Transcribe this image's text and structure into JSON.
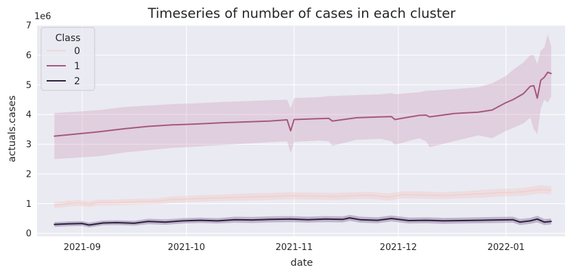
{
  "chart_data": {
    "type": "line",
    "title": "Timeseries of number of cases in each cluster",
    "xlabel": "date",
    "ylabel": "actuals.cases",
    "y_offset_label": "1e6",
    "x_range": [
      "2021-08-19",
      "2022-01-18"
    ],
    "ylim": [
      -0.1,
      7.0
    ],
    "y_unit": 1000000,
    "y_ticks": [
      {
        "value": 0,
        "label": "0"
      },
      {
        "value": 1,
        "label": "1"
      },
      {
        "value": 2,
        "label": "2"
      },
      {
        "value": 3,
        "label": "3"
      },
      {
        "value": 4,
        "label": "4"
      },
      {
        "value": 5,
        "label": "5"
      },
      {
        "value": 6,
        "label": "6"
      },
      {
        "value": 7,
        "label": "7"
      }
    ],
    "x_ticks": [
      {
        "value": "2021-09-01",
        "label": "2021-09"
      },
      {
        "value": "2021-10-01",
        "label": "2021-10"
      },
      {
        "value": "2021-11-01",
        "label": "2021-11"
      },
      {
        "value": "2021-12-01",
        "label": "2021-12"
      },
      {
        "value": "2022-01-01",
        "label": "2022-01"
      }
    ],
    "grid": true,
    "legend": {
      "title": "Class",
      "placement": "top-left"
    },
    "series": [
      {
        "name": "0",
        "color": "#f1cfcc",
        "band_color": "#f3c7c0",
        "band_opacity": 0.35,
        "line_width": 1.5,
        "x": [
          "2021-08-24",
          "2021-08-26",
          "2021-08-28",
          "2021-08-31",
          "2021-09-03",
          "2021-09-06",
          "2021-09-09",
          "2021-09-13",
          "2021-09-18",
          "2021-09-23",
          "2021-09-26",
          "2021-09-30",
          "2021-10-06",
          "2021-10-12",
          "2021-10-18",
          "2021-10-24",
          "2021-10-31",
          "2021-11-03",
          "2021-11-08",
          "2021-11-13",
          "2021-11-18",
          "2021-11-23",
          "2021-11-28",
          "2021-12-02",
          "2021-12-08",
          "2021-12-14",
          "2021-12-20",
          "2021-12-26",
          "2021-12-30",
          "2022-01-03",
          "2022-01-06",
          "2022-01-09",
          "2022-01-11",
          "2022-01-14"
        ],
        "y": [
          0.95,
          0.97,
          1.0,
          1.02,
          0.98,
          1.04,
          1.03,
          1.05,
          1.07,
          1.08,
          1.13,
          1.15,
          1.18,
          1.2,
          1.22,
          1.24,
          1.27,
          1.26,
          1.25,
          1.24,
          1.27,
          1.28,
          1.22,
          1.3,
          1.29,
          1.27,
          1.3,
          1.34,
          1.37,
          1.38,
          1.4,
          1.45,
          1.48,
          1.45
        ],
        "lower": [
          0.85,
          0.87,
          0.9,
          0.92,
          0.88,
          0.94,
          0.93,
          0.95,
          0.97,
          0.98,
          1.02,
          1.04,
          1.07,
          1.09,
          1.1,
          1.12,
          1.15,
          1.14,
          1.13,
          1.12,
          1.15,
          1.16,
          1.1,
          1.18,
          1.17,
          1.15,
          1.18,
          1.21,
          1.24,
          1.25,
          1.27,
          1.31,
          1.34,
          1.31
        ],
        "upper": [
          1.05,
          1.07,
          1.1,
          1.12,
          1.08,
          1.14,
          1.13,
          1.15,
          1.17,
          1.18,
          1.24,
          1.26,
          1.29,
          1.31,
          1.34,
          1.36,
          1.39,
          1.38,
          1.37,
          1.36,
          1.39,
          1.4,
          1.34,
          1.42,
          1.41,
          1.39,
          1.42,
          1.47,
          1.5,
          1.51,
          1.53,
          1.59,
          1.62,
          1.59
        ]
      },
      {
        "name": "1",
        "color": "#a4577f",
        "band_color": "#c788ab",
        "band_opacity": 0.28,
        "line_width": 2.0,
        "x": [
          "2021-08-24",
          "2021-08-31",
          "2021-09-06",
          "2021-09-13",
          "2021-09-20",
          "2021-09-27",
          "2021-10-04",
          "2021-10-11",
          "2021-10-18",
          "2021-10-25",
          "2021-10-30",
          "2021-10-31",
          "2021-11-01",
          "2021-11-08",
          "2021-11-11",
          "2021-11-12",
          "2021-11-19",
          "2021-11-26",
          "2021-11-29",
          "2021-11-30",
          "2021-12-07",
          "2021-12-09",
          "2021-12-10",
          "2021-12-17",
          "2021-12-24",
          "2021-12-28",
          "2022-01-01",
          "2022-01-03",
          "2022-01-06",
          "2022-01-08",
          "2022-01-09",
          "2022-01-10",
          "2022-01-11",
          "2022-01-12",
          "2022-01-13",
          "2022-01-14"
        ],
        "y": [
          3.27,
          3.35,
          3.42,
          3.52,
          3.6,
          3.65,
          3.68,
          3.72,
          3.75,
          3.78,
          3.82,
          3.45,
          3.83,
          3.86,
          3.87,
          3.78,
          3.89,
          3.92,
          3.93,
          3.83,
          3.97,
          3.98,
          3.92,
          4.03,
          4.08,
          4.15,
          4.4,
          4.5,
          4.7,
          4.95,
          4.97,
          4.55,
          5.15,
          5.25,
          5.42,
          5.38
        ],
        "lower": [
          2.5,
          2.55,
          2.6,
          2.72,
          2.8,
          2.88,
          2.92,
          2.97,
          3.02,
          3.07,
          3.1,
          2.7,
          3.08,
          3.12,
          3.1,
          2.95,
          3.15,
          3.18,
          3.1,
          2.98,
          3.2,
          3.1,
          2.9,
          3.1,
          3.3,
          3.2,
          3.45,
          3.55,
          3.7,
          3.9,
          3.5,
          3.35,
          4.2,
          4.5,
          4.4,
          4.6
        ],
        "upper": [
          4.05,
          4.1,
          4.15,
          4.25,
          4.3,
          4.35,
          4.38,
          4.42,
          4.45,
          4.48,
          4.5,
          4.2,
          4.55,
          4.58,
          4.62,
          4.62,
          4.65,
          4.68,
          4.72,
          4.68,
          4.75,
          4.8,
          4.8,
          4.85,
          4.92,
          5.05,
          5.3,
          5.5,
          5.75,
          6.0,
          6.0,
          5.7,
          6.15,
          6.25,
          6.7,
          6.3
        ]
      },
      {
        "name": "2",
        "color": "#2e1e3b",
        "band_color": "#6a4d84",
        "band_opacity": 0.35,
        "line_width": 2.0,
        "x": [
          "2021-08-24",
          "2021-08-28",
          "2021-09-01",
          "2021-09-03",
          "2021-09-07",
          "2021-09-11",
          "2021-09-16",
          "2021-09-20",
          "2021-09-25",
          "2021-09-30",
          "2021-10-05",
          "2021-10-10",
          "2021-10-15",
          "2021-10-20",
          "2021-10-25",
          "2021-10-31",
          "2021-11-05",
          "2021-11-10",
          "2021-11-15",
          "2021-11-17",
          "2021-11-20",
          "2021-11-25",
          "2021-11-29",
          "2021-12-04",
          "2021-12-09",
          "2021-12-14",
          "2021-12-19",
          "2021-12-24",
          "2021-12-29",
          "2022-01-03",
          "2022-01-05",
          "2022-01-08",
          "2022-01-10",
          "2022-01-12",
          "2022-01-14"
        ],
        "y": [
          0.3,
          0.32,
          0.33,
          0.28,
          0.35,
          0.36,
          0.34,
          0.4,
          0.38,
          0.42,
          0.44,
          0.42,
          0.46,
          0.45,
          0.47,
          0.48,
          0.46,
          0.48,
          0.47,
          0.52,
          0.46,
          0.44,
          0.5,
          0.43,
          0.44,
          0.42,
          0.43,
          0.44,
          0.45,
          0.46,
          0.38,
          0.42,
          0.48,
          0.38,
          0.4
        ],
        "lower": [
          0.22,
          0.24,
          0.25,
          0.2,
          0.27,
          0.28,
          0.26,
          0.31,
          0.29,
          0.33,
          0.35,
          0.33,
          0.36,
          0.35,
          0.37,
          0.38,
          0.36,
          0.38,
          0.37,
          0.42,
          0.36,
          0.34,
          0.4,
          0.33,
          0.34,
          0.32,
          0.33,
          0.34,
          0.35,
          0.36,
          0.28,
          0.32,
          0.37,
          0.28,
          0.3
        ],
        "upper": [
          0.38,
          0.4,
          0.41,
          0.36,
          0.43,
          0.44,
          0.42,
          0.49,
          0.47,
          0.51,
          0.53,
          0.51,
          0.56,
          0.55,
          0.57,
          0.58,
          0.56,
          0.58,
          0.57,
          0.62,
          0.56,
          0.54,
          0.6,
          0.53,
          0.54,
          0.52,
          0.53,
          0.54,
          0.55,
          0.56,
          0.48,
          0.52,
          0.59,
          0.48,
          0.5
        ]
      }
    ]
  }
}
